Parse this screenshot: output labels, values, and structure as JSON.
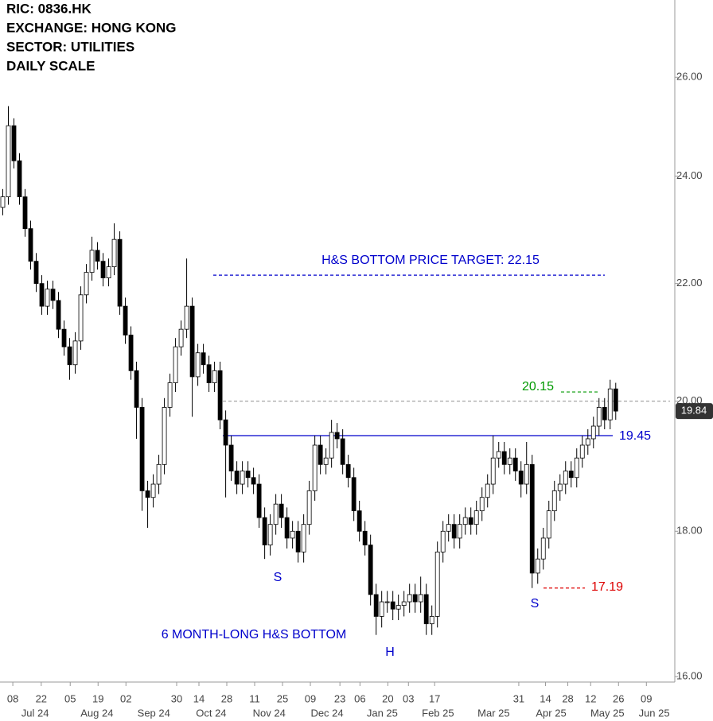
{
  "header": {
    "lines": [
      "RIC:  0836.HK",
      "EXCHANGE:  HONG KONG",
      "SECTOR:  UTILITIES",
      "DAILY SCALE"
    ]
  },
  "chart_data": {
    "type": "candlestick",
    "log_scale": true,
    "grid": false,
    "up_color": "#ffffff",
    "down_color": "#000000",
    "edge_color": "#000000",
    "open": [
      23.4,
      23.6,
      25.0,
      24.3,
      23.6,
      23.0,
      22.4,
      22.0,
      21.6,
      21.9,
      21.7,
      21.2,
      20.9,
      20.6,
      21.0,
      21.8,
      22.2,
      22.6,
      22.4,
      22.1,
      22.3,
      22.8,
      21.6,
      21.1,
      20.5,
      19.9,
      18.6,
      18.5,
      18.7,
      19.0,
      19.9,
      20.3,
      20.9,
      21.2,
      21.6,
      20.4,
      20.8,
      20.6,
      20.3,
      20.5,
      19.7,
      19.3,
      18.9,
      18.7,
      18.9,
      18.8,
      18.7,
      18.2,
      17.8,
      18.1,
      18.4,
      18.2,
      17.9,
      18.0,
      17.7,
      18.1,
      18.6,
      19.3,
      19.0,
      19.1,
      19.5,
      19.4,
      19.0,
      18.8,
      18.3,
      18.0,
      17.8,
      17.1,
      16.8,
      17.0,
      17.0,
      16.9,
      16.95,
      17.0,
      17.1,
      17.0,
      17.1,
      16.7,
      16.8,
      17.7,
      18.0,
      18.1,
      17.9,
      18.1,
      18.2,
      18.1,
      18.3,
      18.5,
      18.7,
      19.1,
      19.2,
      19.0,
      19.1,
      18.9,
      18.7,
      19.0,
      17.4,
      17.6,
      17.9,
      18.3,
      18.6,
      18.7,
      18.9,
      18.8,
      19.1,
      19.3,
      19.4,
      19.6,
      19.9,
      19.7,
      20.2
    ],
    "high": [
      23.75,
      25.4,
      25.15,
      24.45,
      23.75,
      23.15,
      22.55,
      22.15,
      22.05,
      22.05,
      21.85,
      21.35,
      21.05,
      21.15,
      21.95,
      22.35,
      22.85,
      22.75,
      22.55,
      22.45,
      23.1,
      22.95,
      21.75,
      21.25,
      20.65,
      20.05,
      18.75,
      18.85,
      19.15,
      20.05,
      20.45,
      21.05,
      21.35,
      22.45,
      21.75,
      20.95,
      20.95,
      20.75,
      20.65,
      20.65,
      19.85,
      19.45,
      19.05,
      19.05,
      19.05,
      18.95,
      18.85,
      18.35,
      18.25,
      18.55,
      18.55,
      18.35,
      18.15,
      18.15,
      18.25,
      18.75,
      19.45,
      19.45,
      19.25,
      19.7,
      19.65,
      19.55,
      19.15,
      18.95,
      18.45,
      18.15,
      17.95,
      17.25,
      17.15,
      17.15,
      17.15,
      17.1,
      17.15,
      17.25,
      17.25,
      17.35,
      17.25,
      16.95,
      17.85,
      18.15,
      18.25,
      18.25,
      18.25,
      18.35,
      18.35,
      18.45,
      18.65,
      18.85,
      19.45,
      19.35,
      19.35,
      19.25,
      19.25,
      19.05,
      19.35,
      19.15,
      17.75,
      18.05,
      18.45,
      18.75,
      18.85,
      19.05,
      19.05,
      19.25,
      19.45,
      19.55,
      19.75,
      20.05,
      20.05,
      20.35,
      20.3
    ],
    "low": [
      23.25,
      23.45,
      24.15,
      23.45,
      22.85,
      22.25,
      21.85,
      21.45,
      21.45,
      21.55,
      21.05,
      20.75,
      20.35,
      20.45,
      20.85,
      21.65,
      22.05,
      22.25,
      21.95,
      21.95,
      22.15,
      21.45,
      20.95,
      20.35,
      19.4,
      18.3,
      18.05,
      18.35,
      18.55,
      18.85,
      19.75,
      20.15,
      20.75,
      21.05,
      19.75,
      20.25,
      20.45,
      20.15,
      20.15,
      19.55,
      18.5,
      18.75,
      18.55,
      18.55,
      18.65,
      18.55,
      18.05,
      17.6,
      17.65,
      17.95,
      18.05,
      17.75,
      17.75,
      17.55,
      17.55,
      17.95,
      18.45,
      18.85,
      18.85,
      18.95,
      19.25,
      18.85,
      18.65,
      18.15,
      17.85,
      17.65,
      16.95,
      16.55,
      16.65,
      16.85,
      16.75,
      16.75,
      16.8,
      16.85,
      16.85,
      16.85,
      16.55,
      16.55,
      16.65,
      17.55,
      17.85,
      17.75,
      17.75,
      17.95,
      17.95,
      17.95,
      18.15,
      18.35,
      18.55,
      18.95,
      18.85,
      18.85,
      18.75,
      18.5,
      18.55,
      17.19,
      17.25,
      17.45,
      17.75,
      18.15,
      18.45,
      18.55,
      18.65,
      18.65,
      18.95,
      19.15,
      19.25,
      19.45,
      19.55,
      19.55,
      19.7
    ],
    "close": [
      23.6,
      25.0,
      24.3,
      23.6,
      23.0,
      22.4,
      22.0,
      21.6,
      21.9,
      21.7,
      21.2,
      20.9,
      20.6,
      21.0,
      21.8,
      22.2,
      22.6,
      22.4,
      22.1,
      22.3,
      22.8,
      21.6,
      21.1,
      20.5,
      19.9,
      18.6,
      18.5,
      18.7,
      19.0,
      19.9,
      20.3,
      20.9,
      21.2,
      21.6,
      20.4,
      20.8,
      20.6,
      20.3,
      20.5,
      19.7,
      19.3,
      18.9,
      18.7,
      18.9,
      18.8,
      18.7,
      18.2,
      17.8,
      18.1,
      18.4,
      18.2,
      17.9,
      18.0,
      17.7,
      18.1,
      18.6,
      19.3,
      19.0,
      19.1,
      19.5,
      19.4,
      19.0,
      18.8,
      18.3,
      18.0,
      17.8,
      17.1,
      16.8,
      17.0,
      17.0,
      16.9,
      16.95,
      17.0,
      17.1,
      17.0,
      17.1,
      16.7,
      16.8,
      17.7,
      18.0,
      18.1,
      17.9,
      18.1,
      18.2,
      18.1,
      18.3,
      18.5,
      18.7,
      19.1,
      19.2,
      19.0,
      19.1,
      18.9,
      18.7,
      19.0,
      17.4,
      17.6,
      17.9,
      18.3,
      18.6,
      18.7,
      18.9,
      18.8,
      19.1,
      19.3,
      19.4,
      19.6,
      19.9,
      19.7,
      20.2,
      19.84
    ],
    "ylim": [
      15.93,
      27.68
    ],
    "yticks": [
      {
        "value": 16,
        "label": "16.00"
      },
      {
        "value": 18,
        "label": "18.00"
      },
      {
        "value": 20,
        "label": "20.00"
      },
      {
        "value": 22,
        "label": "22.00"
      },
      {
        "value": 24,
        "label": "24.00"
      },
      {
        "value": 26,
        "label": "26.00"
      }
    ],
    "xlim": [
      -0.5,
      120.6
    ],
    "xticks": [
      {
        "value": 1.8,
        "label": "08"
      },
      {
        "value": 6.9,
        "label": "22"
      },
      {
        "value": 12.1,
        "label": "05"
      },
      {
        "value": 17.1,
        "label": "19"
      },
      {
        "value": 22.1,
        "label": "02"
      },
      {
        "value": 31.2,
        "label": "30"
      },
      {
        "value": 35.2,
        "label": "14"
      },
      {
        "value": 40.2,
        "label": "28"
      },
      {
        "value": 45.2,
        "label": "11"
      },
      {
        "value": 50.2,
        "label": "25"
      },
      {
        "value": 55.2,
        "label": "09"
      },
      {
        "value": 60.5,
        "label": "23"
      },
      {
        "value": 64.1,
        "label": "06"
      },
      {
        "value": 69.1,
        "label": "20"
      },
      {
        "value": 72.8,
        "label": "03"
      },
      {
        "value": 77.5,
        "label": "17"
      },
      {
        "value": 92.6,
        "label": "31"
      },
      {
        "value": 97.4,
        "label": "14"
      },
      {
        "value": 101.4,
        "label": "28"
      },
      {
        "value": 105.5,
        "label": "12"
      },
      {
        "value": 110.5,
        "label": "26"
      },
      {
        "value": 115.5,
        "label": "09"
      }
    ],
    "month_ticks": [
      {
        "value": 5.8,
        "label": "Jul 24"
      },
      {
        "value": 16.9,
        "label": "Aug 24"
      },
      {
        "value": 27.1,
        "label": "Sep 24"
      },
      {
        "value": 37.4,
        "label": "Oct 24"
      },
      {
        "value": 47.8,
        "label": "Nov 24"
      },
      {
        "value": 58.2,
        "label": "Dec 24"
      },
      {
        "value": 68.1,
        "label": "Jan 25"
      },
      {
        "value": 78.1,
        "label": "Feb 25"
      },
      {
        "value": 88.1,
        "label": "Mar 25"
      },
      {
        "value": 98.4,
        "label": "Apr 25"
      },
      {
        "value": 108.5,
        "label": "May 25"
      },
      {
        "value": 116.9,
        "label": "Jun 25"
      }
    ],
    "levels": [
      {
        "value": 22.15,
        "color": "#0000cc",
        "style": "dashed"
      },
      {
        "value": 20,
        "color": "#999999",
        "style": "dashed"
      },
      {
        "value": 19.45,
        "color": "#0000cc",
        "style": "solid",
        "label": 19.45
      },
      {
        "value": 20.15,
        "color": "#009900",
        "style": "dashed",
        "label": 20.15
      },
      {
        "value": 17.19,
        "color": "#dd0000",
        "style": "dashed",
        "label": 17.19
      }
    ],
    "annotations": [
      "H&S BOTTOM PRICE TARGET: 22.15",
      "S",
      "H",
      "S",
      "6 MONTH-LONG H&S BOTTOM"
    ]
  }
}
